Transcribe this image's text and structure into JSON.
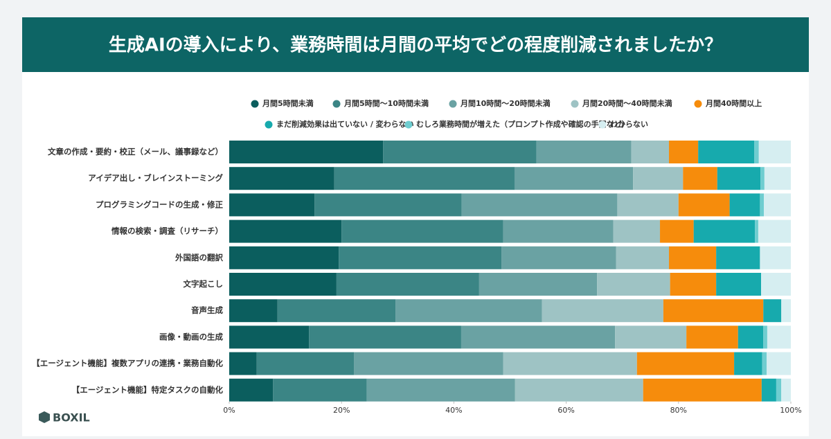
{
  "chart_data": {
    "type": "stacked-bar-horizontal",
    "title": "生成AIの導入により、業務時間は月間の平均でどの程度削減されましたか？",
    "brand": "BOXIL",
    "categories": [
      "文章の作成・要約・校正（メール、議事録など）",
      "アイデア出し・ブレインストーミング",
      "プログラミングコードの生成・修正",
      "情報の検索・調査（リサーチ）",
      "外国語の翻訳",
      "文字起こし",
      "音声生成",
      "画像・動画の生成",
      "【エージェント機能】複数アプリの連携・業務自動化",
      "【エージェント機能】特定タスクの自動化"
    ],
    "series": [
      {
        "name": "月間5時間未満",
        "color": "#0b5e5e",
        "values": [
          27.4,
          18.7,
          15.2,
          20.0,
          19.5,
          19.1,
          8.6,
          14.2,
          4.9,
          7.8
        ]
      },
      {
        "name": "月間5時間〜10時間未満",
        "color": "#3b8585",
        "values": [
          27.3,
          32.1,
          26.2,
          28.8,
          29.0,
          25.4,
          21.0,
          27.1,
          17.3,
          16.7
        ]
      },
      {
        "name": "月間10時間〜20時間未満",
        "color": "#6aa2a3",
        "values": [
          16.9,
          21.1,
          27.7,
          19.6,
          20.4,
          21.0,
          26.1,
          27.4,
          26.6,
          26.4
        ]
      },
      {
        "name": "月間20時間〜40時間未満",
        "color": "#9ec3c4",
        "values": [
          6.7,
          8.9,
          10.9,
          8.3,
          9.4,
          13.0,
          21.6,
          12.7,
          23.8,
          22.8
        ]
      },
      {
        "name": "月間40時間以上",
        "color": "#f68c0c",
        "values": [
          5.2,
          6.1,
          9.1,
          6.0,
          8.4,
          8.2,
          17.8,
          9.2,
          17.3,
          21.1
        ]
      },
      {
        "name": "まだ削減効果は出ていない / 変わらない",
        "color": "#17aaad",
        "values": [
          10.0,
          7.7,
          5.4,
          10.9,
          7.8,
          8.0,
          3.2,
          4.5,
          5.0,
          2.6
        ]
      },
      {
        "name": "むしろ業務時間が増えた（プロンプト作成や確認の手間など）",
        "color": "#6fcdd0",
        "values": [
          0.8,
          0.7,
          0.7,
          0.6,
          0,
          0,
          0,
          0.7,
          0.8,
          0.9
        ]
      },
      {
        "name": "わからない",
        "color": "#d6eef1",
        "values": [
          5.7,
          4.7,
          4.8,
          5.8,
          5.5,
          5.3,
          1.7,
          4.2,
          4.3,
          1.7
        ]
      }
    ],
    "xlim": [
      0,
      100
    ],
    "xticks": [
      {
        "value": 0,
        "label": "0%"
      },
      {
        "value": 20,
        "label": "20%"
      },
      {
        "value": 40,
        "label": "40%"
      },
      {
        "value": 60,
        "label": "60%"
      },
      {
        "value": 80,
        "label": "80%"
      },
      {
        "value": 100,
        "label": "100%"
      }
    ]
  }
}
